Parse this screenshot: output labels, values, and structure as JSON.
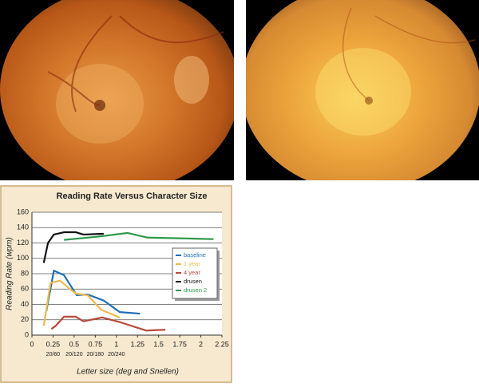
{
  "chart_data": {
    "type": "line",
    "title": "Reading Rate Versus Character Size",
    "x_label": "Letter size (deg and Snellen)",
    "y_label": "Reading Rate (wpm)",
    "xlim": [
      0,
      2.25
    ],
    "xticks": [
      0,
      0.25,
      0.5,
      0.75,
      1,
      1.25,
      1.5,
      1.75,
      2,
      2.25
    ],
    "ylim": [
      0,
      160
    ],
    "yticks": [
      0,
      20,
      40,
      60,
      80,
      100,
      120,
      140,
      160
    ],
    "grid": true,
    "snellen_ticks": [
      {
        "value": 0.25,
        "label": "20/60"
      },
      {
        "value": 0.5,
        "label": "20/120"
      },
      {
        "value": 0.75,
        "label": "20/180"
      },
      {
        "value": 1,
        "label": "20/240"
      }
    ],
    "series": [
      {
        "name": "baseline",
        "color": "#1f6fb5",
        "x": [
          0.17,
          0.26,
          0.38,
          0.53,
          0.66,
          0.85,
          1.04,
          1.28
        ],
        "values": [
          31,
          84,
          78,
          52,
          53,
          45,
          30,
          28
        ]
      },
      {
        "name": "1 year",
        "color": "#f0b84a",
        "x": [
          0.14,
          0.22,
          0.33,
          0.43,
          0.52,
          0.66,
          0.82,
          1.04
        ],
        "values": [
          12,
          68,
          71,
          62,
          54,
          52,
          33,
          23
        ]
      },
      {
        "name": "4 year",
        "color": "#b84a3a",
        "x": [
          0.23,
          0.28,
          0.38,
          0.52,
          0.61,
          0.83,
          1.04,
          1.35,
          1.58
        ],
        "values": [
          8,
          12,
          24,
          24,
          18,
          23,
          17,
          6,
          7
        ]
      },
      {
        "name": "drusen",
        "color": "#111111",
        "x": [
          0.14,
          0.19,
          0.26,
          0.38,
          0.52,
          0.61,
          0.85
        ],
        "values": [
          94,
          120,
          131,
          134,
          134,
          131,
          132
        ]
      },
      {
        "name": "drusen 2",
        "color": "#2e9a4a",
        "x": [
          0.38,
          0.76,
          1.13,
          1.37,
          1.8,
          2.15
        ],
        "values": [
          124,
          128,
          133,
          127,
          126,
          125
        ]
      }
    ]
  }
}
